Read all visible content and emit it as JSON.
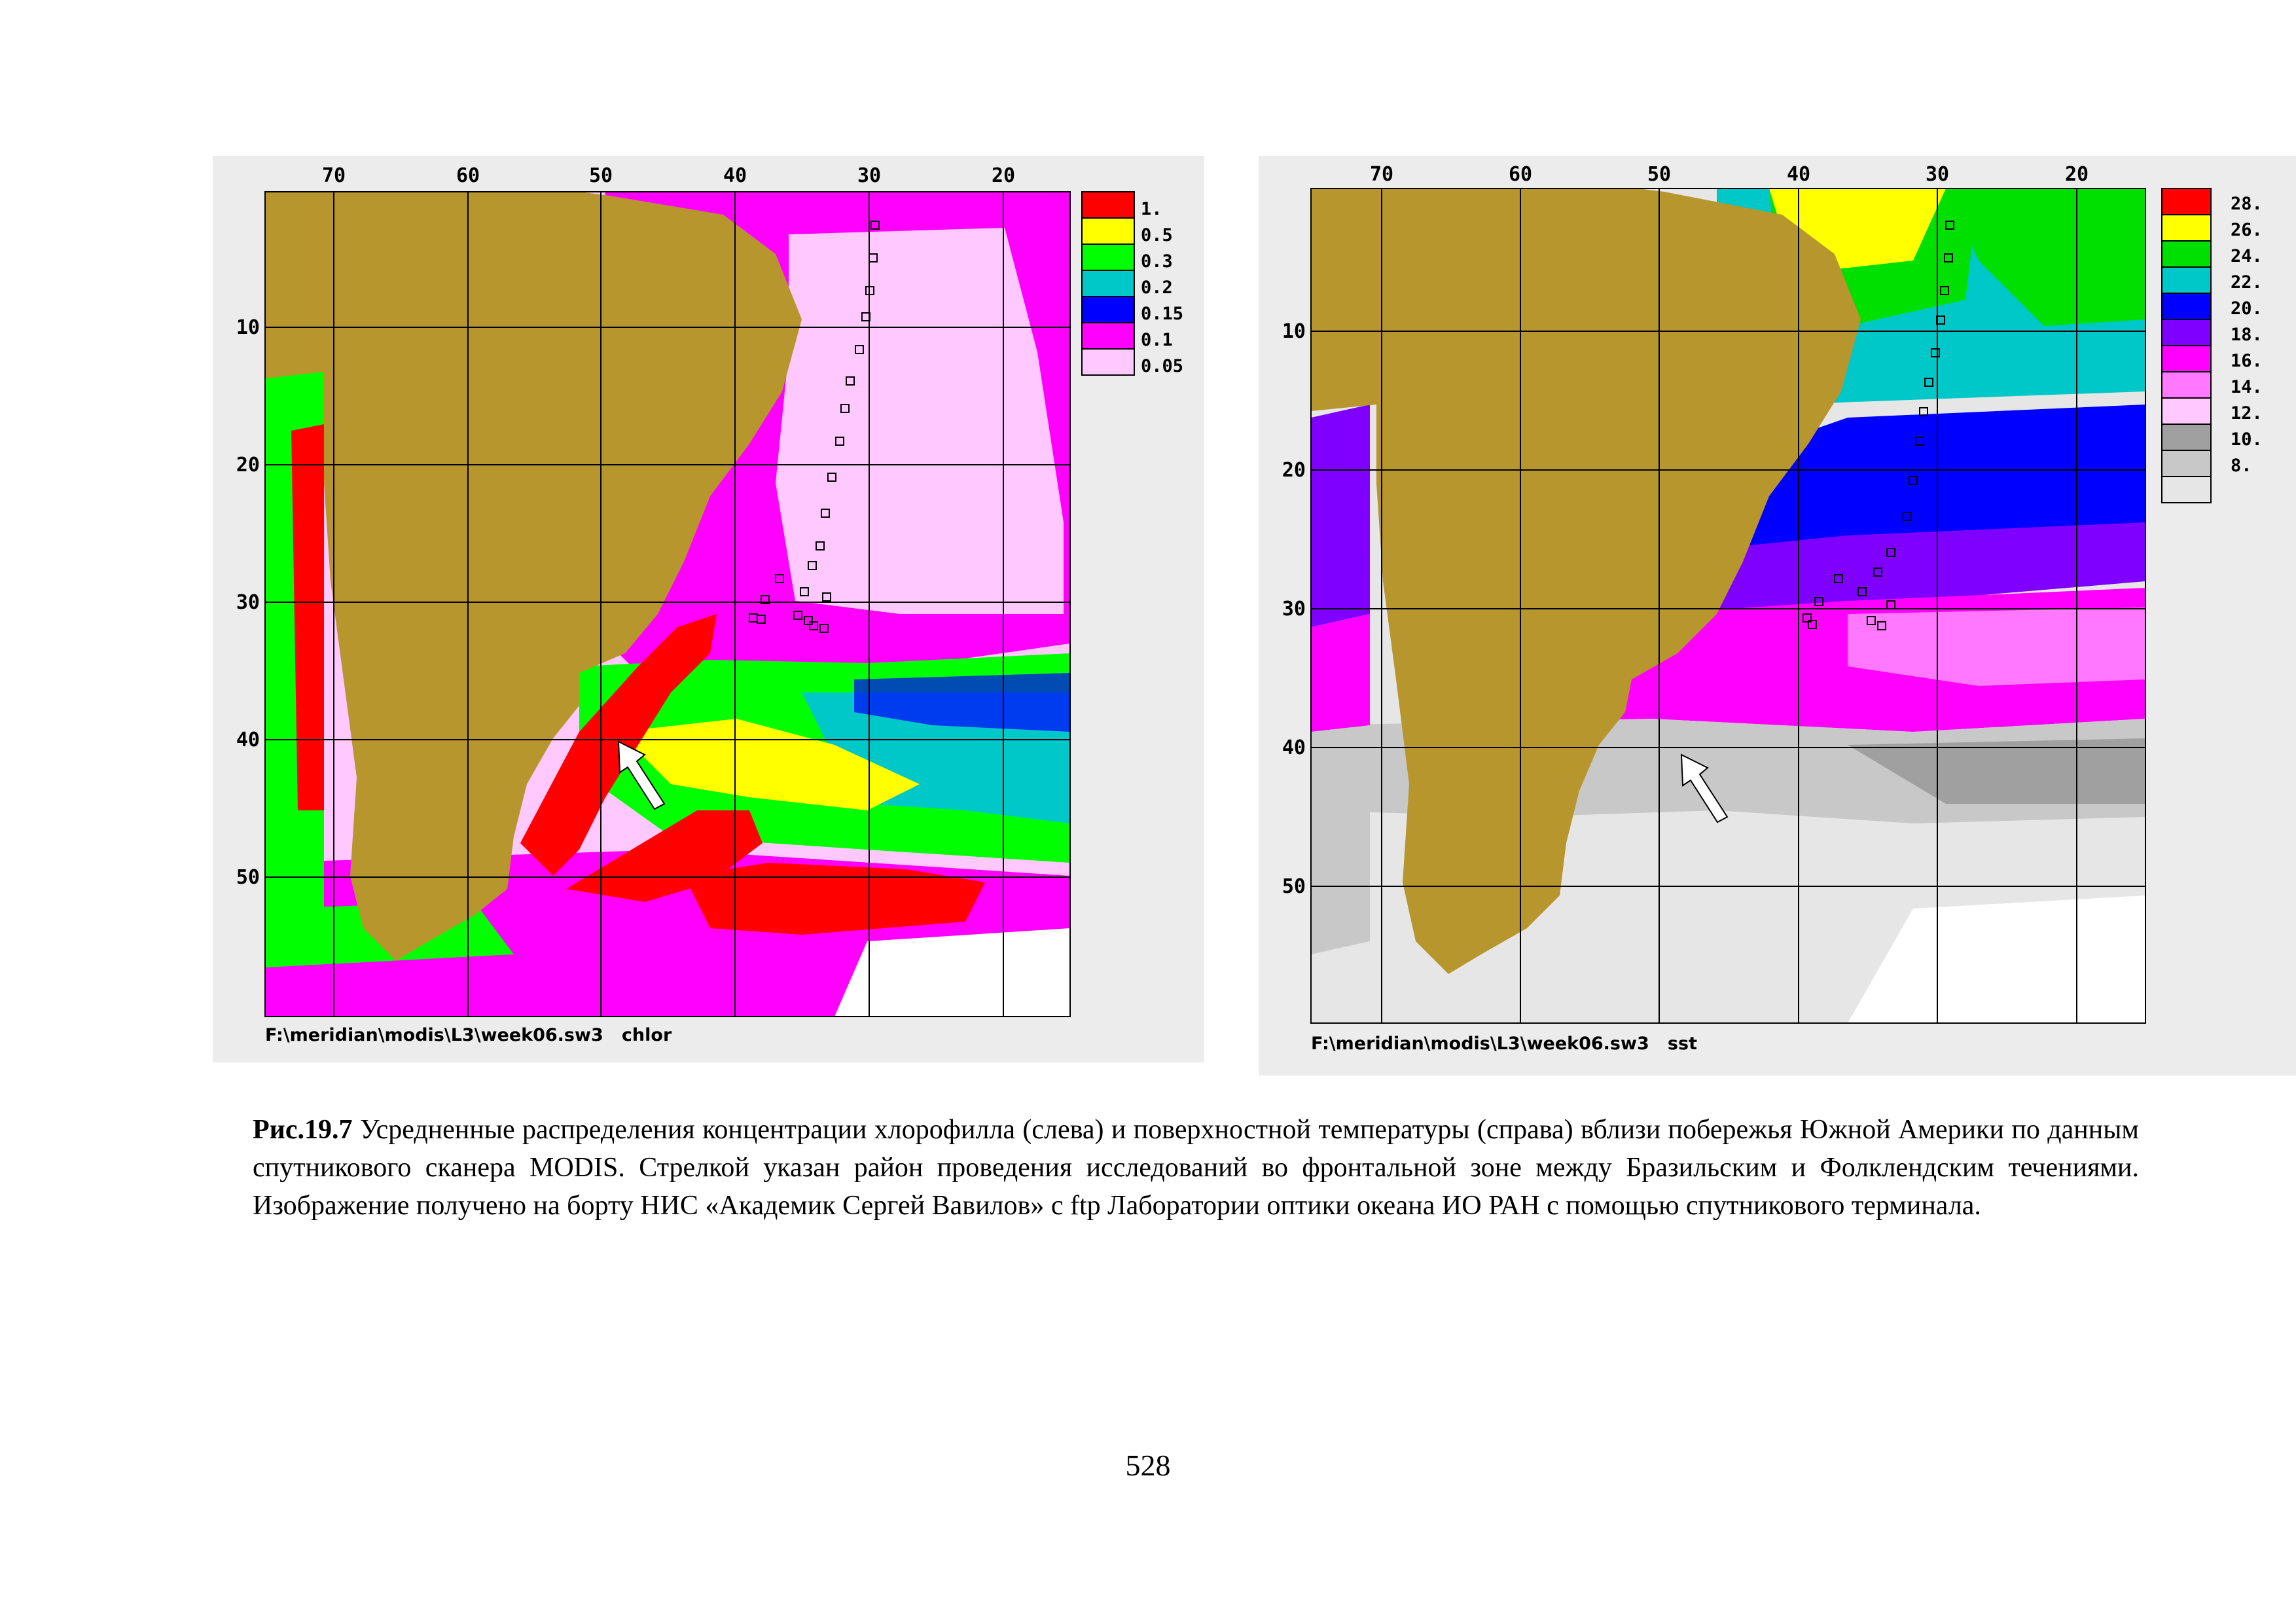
{
  "maps": [
    {
      "id": "chlorophyll",
      "lon_labels": [
        "70",
        "60",
        "50",
        "40",
        "30",
        "20"
      ],
      "lat_labels": [
        "10",
        "20",
        "30",
        "40",
        "50"
      ],
      "legend": [
        {
          "label": "1.",
          "color": "#ff0000"
        },
        {
          "label": "0.5",
          "color": "#ffff00"
        },
        {
          "label": "0.3",
          "color": "#00ff00"
        },
        {
          "label": "0.2",
          "color": "#00c8c8"
        },
        {
          "label": "0.15",
          "color": "#0000ff"
        },
        {
          "label": "0.1",
          "color": "#ff00ff"
        },
        {
          "label": "0.05",
          "color": "#ffc8ff"
        }
      ],
      "file_label": "F:\\meridian\\modis\\L3\\week06.sw3   chlor",
      "land_color": "#b8962e"
    },
    {
      "id": "sst",
      "lon_labels": [
        "70",
        "60",
        "50",
        "40",
        "30",
        "20"
      ],
      "lat_labels": [
        "10",
        "20",
        "30",
        "40",
        "50"
      ],
      "legend": [
        {
          "label": "28.",
          "color": "#ff0000"
        },
        {
          "label": "26.",
          "color": "#ffff00"
        },
        {
          "label": "24.",
          "color": "#00e000"
        },
        {
          "label": "22.",
          "color": "#00c8c8"
        },
        {
          "label": "20.",
          "color": "#0000ff"
        },
        {
          "label": "18.",
          "color": "#8000ff"
        },
        {
          "label": "16.",
          "color": "#ff00ff"
        },
        {
          "label": "14.",
          "color": "#ff78ff"
        },
        {
          "label": "12.",
          "color": "#ffc8ff"
        },
        {
          "label": "10.",
          "color": "#a0a0a0"
        },
        {
          "label": "8.",
          "color": "#c8c8c8"
        },
        {
          "label": "",
          "color": "#e6e6e6"
        }
      ],
      "file_label": "F:\\meridian\\modis\\L3\\week06.sw3   sst",
      "land_color": "#b8962e"
    }
  ],
  "caption": {
    "label": "Рис.19.7",
    "text": " Усредненные  распределения концентрации хлорофилла (слева) и поверхностной температуры (справа) вблизи побережья Южной Америки по данным спутникового сканера MODIS. Стрелкой указан район проведения исследований во фронтальной зоне между Бразильским и Фолклендским течениями. Изображение получено на борту НИС «Академик Сергей Вавилов» с ftp Лаборатории оптики океана ИО РАН с помощью спутникового терминала."
  },
  "page_number": "528"
}
